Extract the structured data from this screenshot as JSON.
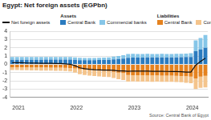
{
  "chart_data": {
    "type": "bar",
    "title": "Egypt: Net foreign assets (EGPbn)",
    "source": "Source: Central Bank of Egypt",
    "categories": [
      "2021",
      null,
      null,
      null,
      null,
      null,
      null,
      null,
      null,
      null,
      null,
      null,
      "2022",
      null,
      null,
      null,
      null,
      null,
      null,
      null,
      null,
      null,
      null,
      null,
      "2023",
      null,
      null,
      null,
      null,
      null,
      null,
      null,
      null,
      null,
      null,
      null,
      "2024",
      null,
      null,
      null,
      null
    ],
    "series": [
      {
        "name": "Net foreign assets",
        "type": "line",
        "color": "#111111",
        "values": [
          0.2,
          0.19,
          0.19,
          0.16,
          0.15,
          0.15,
          0.13,
          0.13,
          0.12,
          0.1,
          0.1,
          0.06,
          0.01,
          -0.17,
          -0.42,
          -0.53,
          -0.61,
          -0.65,
          -0.67,
          -0.7,
          -0.7,
          -0.72,
          -0.79,
          -0.8,
          -0.85,
          -0.81,
          -0.83,
          -0.83,
          -0.83,
          -0.85,
          -0.84,
          -0.84,
          -0.86,
          -0.87,
          -0.88,
          -0.89,
          -0.94,
          -0.95,
          -0.1,
          0.35,
          0.75
        ]
      },
      {
        "name": "Central Bank",
        "group": "Assets",
        "color": "#2b7bbf",
        "values": [
          0.55,
          0.55,
          0.56,
          0.55,
          0.55,
          0.56,
          0.56,
          0.57,
          0.57,
          0.57,
          0.58,
          0.58,
          0.58,
          0.55,
          0.5,
          0.5,
          0.5,
          0.5,
          0.52,
          0.53,
          0.55,
          0.6,
          0.65,
          0.7,
          0.8,
          0.82,
          0.82,
          0.82,
          0.83,
          0.83,
          0.83,
          0.84,
          0.84,
          0.84,
          0.85,
          0.86,
          0.88,
          0.9,
          1.6,
          1.8,
          2.0
        ]
      },
      {
        "name": "Commercial banks",
        "group": "Assets",
        "color": "#86c6e8",
        "values": [
          0.35,
          0.34,
          0.34,
          0.33,
          0.33,
          0.33,
          0.32,
          0.32,
          0.32,
          0.31,
          0.31,
          0.3,
          0.3,
          0.28,
          0.28,
          0.27,
          0.27,
          0.27,
          0.28,
          0.28,
          0.3,
          0.33,
          0.36,
          0.4,
          0.45,
          0.45,
          0.44,
          0.44,
          0.44,
          0.43,
          0.43,
          0.43,
          0.42,
          0.42,
          0.42,
          0.42,
          0.43,
          0.45,
          1.3,
          1.4,
          1.55
        ]
      },
      {
        "name": "Central Bank",
        "group": "Liabilities",
        "color": "#e5821f",
        "values": [
          -0.35,
          -0.35,
          -0.36,
          -0.36,
          -0.37,
          -0.37,
          -0.38,
          -0.38,
          -0.39,
          -0.4,
          -0.4,
          -0.42,
          -0.45,
          -0.5,
          -0.6,
          -0.65,
          -0.7,
          -0.72,
          -0.75,
          -0.78,
          -0.8,
          -0.9,
          -1.0,
          -1.05,
          -1.3,
          -1.32,
          -1.33,
          -1.33,
          -1.34,
          -1.35,
          -1.35,
          -1.36,
          -1.37,
          -1.38,
          -1.4,
          -1.42,
          -1.45,
          -1.5,
          -1.7,
          -1.5,
          -1.4
        ]
      },
      {
        "name": "Commercial banks",
        "group": "Liabilities",
        "color": "#f4c48c",
        "values": [
          -0.35,
          -0.35,
          -0.35,
          -0.36,
          -0.36,
          -0.37,
          -0.37,
          -0.38,
          -0.38,
          -0.38,
          -0.39,
          -0.4,
          -0.42,
          -0.5,
          -0.6,
          -0.65,
          -0.68,
          -0.7,
          -0.72,
          -0.73,
          -0.75,
          -0.75,
          -0.8,
          -0.85,
          -0.8,
          -0.76,
          -0.76,
          -0.76,
          -0.76,
          -0.76,
          -0.75,
          -0.75,
          -0.75,
          -0.75,
          -0.75,
          -0.75,
          -0.8,
          -0.8,
          -1.3,
          -1.35,
          -1.4
        ]
      }
    ],
    "ylim": [
      -4,
      4
    ],
    "yticks": [
      -4,
      -3,
      -2,
      -1,
      0,
      1,
      2,
      3,
      4
    ],
    "stacked": true,
    "grid": true,
    "legend": "top"
  }
}
